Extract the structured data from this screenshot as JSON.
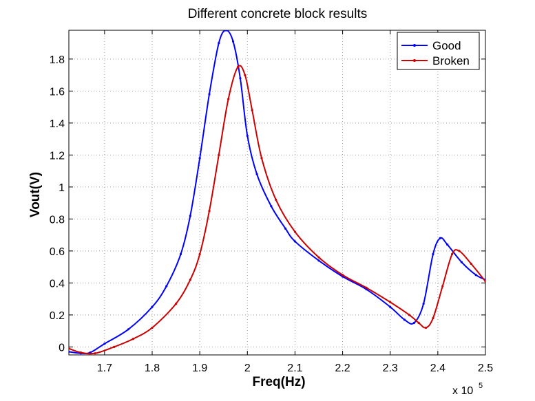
{
  "chart_data": {
    "type": "line",
    "title": "Different concrete block results",
    "xlabel": "Freq(Hz)",
    "ylabel": "Vout(V)",
    "x_multiplier_base": "x 10",
    "x_multiplier_exp": "5",
    "xlim": [
      1.625,
      2.5
    ],
    "ylim": [
      -0.05,
      1.98
    ],
    "x_ticks": [
      1.7,
      1.8,
      1.9,
      2.0,
      2.1,
      2.2,
      2.3,
      2.4,
      2.5
    ],
    "x_tick_labels": [
      "1.7",
      "1.8",
      "1.9",
      "2",
      "2.1",
      "2.2",
      "2.3",
      "2.4",
      "2.5"
    ],
    "y_ticks": [
      0,
      0.2,
      0.4,
      0.6,
      0.8,
      1.0,
      1.2,
      1.4,
      1.6,
      1.8
    ],
    "y_tick_labels": [
      "0",
      "0.2",
      "0.4",
      "0.6",
      "0.8",
      "1",
      "1.2",
      "1.4",
      "1.6",
      "1.8"
    ],
    "grid": true,
    "legend_position": "top-right",
    "series": [
      {
        "name": "Good",
        "color": "#0000ff",
        "x": [
          1.625,
          1.65,
          1.67,
          1.7,
          1.75,
          1.8,
          1.83,
          1.86,
          1.88,
          1.9,
          1.92,
          1.94,
          1.955,
          1.97,
          1.985,
          2.0,
          2.02,
          2.05,
          2.08,
          2.1,
          2.15,
          2.2,
          2.25,
          2.3,
          2.33,
          2.35,
          2.37,
          2.39,
          2.405,
          2.42,
          2.45,
          2.48,
          2.5
        ],
        "y": [
          -0.03,
          -0.04,
          -0.035,
          0.02,
          0.11,
          0.25,
          0.38,
          0.58,
          0.82,
          1.18,
          1.58,
          1.9,
          1.98,
          1.91,
          1.68,
          1.32,
          1.08,
          0.88,
          0.74,
          0.66,
          0.54,
          0.44,
          0.36,
          0.25,
          0.17,
          0.15,
          0.27,
          0.58,
          0.68,
          0.64,
          0.53,
          0.45,
          0.42
        ]
      },
      {
        "name": "Broken",
        "color": "#cc0000",
        "x": [
          1.625,
          1.65,
          1.68,
          1.72,
          1.76,
          1.8,
          1.85,
          1.88,
          1.9,
          1.92,
          1.94,
          1.96,
          1.98,
          1.995,
          2.01,
          2.03,
          2.06,
          2.1,
          2.15,
          2.2,
          2.25,
          2.3,
          2.34,
          2.36,
          2.375,
          2.39,
          2.41,
          2.43,
          2.445,
          2.47,
          2.5
        ],
        "y": [
          -0.01,
          -0.035,
          -0.04,
          0.0,
          0.05,
          0.12,
          0.27,
          0.42,
          0.58,
          0.85,
          1.2,
          1.55,
          1.75,
          1.7,
          1.48,
          1.18,
          0.92,
          0.72,
          0.56,
          0.45,
          0.37,
          0.28,
          0.2,
          0.15,
          0.12,
          0.18,
          0.38,
          0.58,
          0.6,
          0.52,
          0.41
        ]
      }
    ]
  }
}
